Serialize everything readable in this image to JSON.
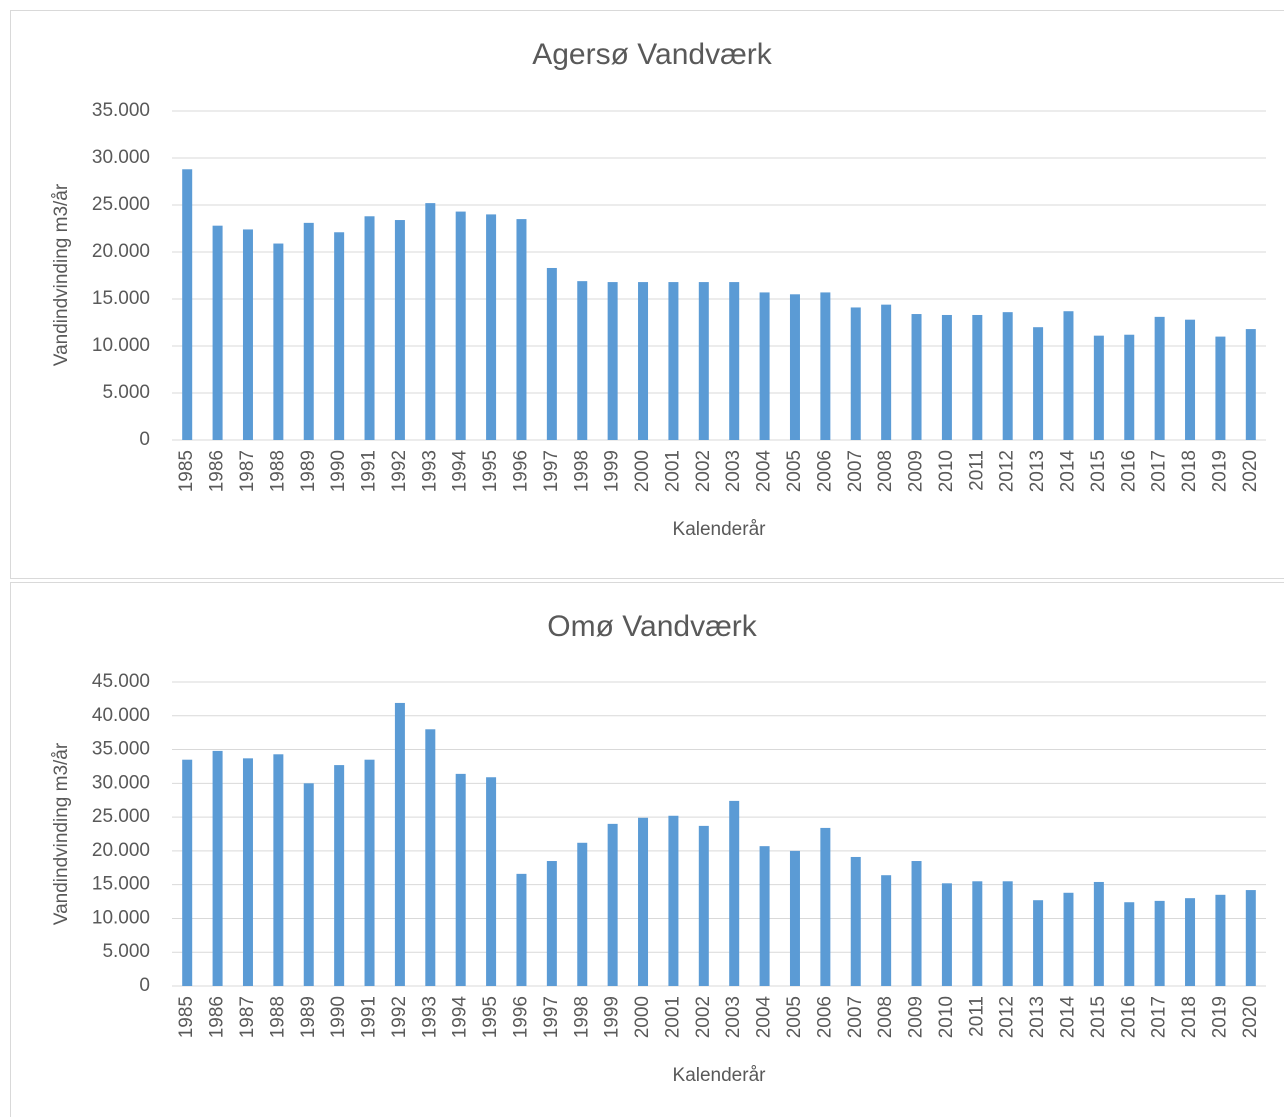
{
  "chart_data": [
    {
      "type": "bar",
      "title": "Agersø Vandværk",
      "x_label": "Kalenderår",
      "y_label": "Vandindvinding m3/år",
      "categories": [
        "1985",
        "1986",
        "1987",
        "1988",
        "1989",
        "1990",
        "1991",
        "1992",
        "1993",
        "1994",
        "1995",
        "1996",
        "1997",
        "1998",
        "1999",
        "2000",
        "2001",
        "2002",
        "2003",
        "2004",
        "2005",
        "2006",
        "2007",
        "2008",
        "2009",
        "2010",
        "2011",
        "2012",
        "2013",
        "2014",
        "2015",
        "2016",
        "2017",
        "2018",
        "2019",
        "2020"
      ],
      "values": [
        28800,
        22800,
        22400,
        20900,
        23100,
        22100,
        23800,
        23400,
        25200,
        24300,
        24000,
        23500,
        18300,
        16900,
        16800,
        16800,
        16800,
        16800,
        16800,
        15700,
        15500,
        15700,
        14100,
        14400,
        13400,
        13300,
        13300,
        13600,
        12000,
        13700,
        11100,
        11200,
        13100,
        12800,
        11000,
        11800
      ],
      "color": "#5b9bd5",
      "ylim": [
        0,
        35000
      ],
      "yticks": [
        0,
        {
          "value": 5000,
          "label": "5.000"
        },
        {
          "value": 10000,
          "label": "10.000"
        },
        {
          "value": 15000,
          "label": "15.000"
        },
        {
          "value": 20000,
          "label": "20.000"
        },
        {
          "value": 25000,
          "label": "25.000"
        },
        {
          "value": 30000,
          "label": "30.000"
        },
        {
          "value": 35000,
          "label": "35.000"
        }
      ],
      "grid": true
    },
    {
      "type": "bar",
      "title": "Omø Vandværk",
      "x_label": "Kalenderår",
      "y_label": "Vandindvinding m3/år",
      "categories": [
        "1985",
        "1986",
        "1987",
        "1988",
        "1989",
        "1990",
        "1991",
        "1992",
        "1993",
        "1994",
        "1995",
        "1996",
        "1997",
        "1998",
        "1999",
        "2000",
        "2001",
        "2002",
        "2003",
        "2004",
        "2005",
        "2006",
        "2007",
        "2008",
        "2009",
        "2010",
        "2011",
        "2012",
        "2013",
        "2014",
        "2015",
        "2016",
        "2017",
        "2018",
        "2019",
        "2020"
      ],
      "values": [
        33500,
        34800,
        33700,
        34300,
        30000,
        32700,
        33500,
        41900,
        38000,
        31400,
        30900,
        16600,
        18500,
        21200,
        24000,
        24900,
        25200,
        23700,
        27400,
        20700,
        20000,
        23400,
        19100,
        16400,
        18500,
        15200,
        15500,
        15500,
        12700,
        13800,
        15400,
        12400,
        12600,
        13000,
        13500,
        14200
      ],
      "color": "#5b9bd5",
      "ylim": [
        0,
        45000
      ],
      "yticks": [
        0,
        {
          "value": 5000,
          "label": "5.000"
        },
        {
          "value": 10000,
          "label": "10.000"
        },
        {
          "value": 15000,
          "label": "15.000"
        },
        {
          "value": 20000,
          "label": "20.000"
        },
        {
          "value": 25000,
          "label": "25.000"
        },
        {
          "value": 30000,
          "label": "30.000"
        },
        {
          "value": 35000,
          "label": "35.000"
        },
        {
          "value": 40000,
          "label": "40.000"
        },
        {
          "value": 45000,
          "label": "45.000"
        }
      ],
      "grid": true
    }
  ]
}
